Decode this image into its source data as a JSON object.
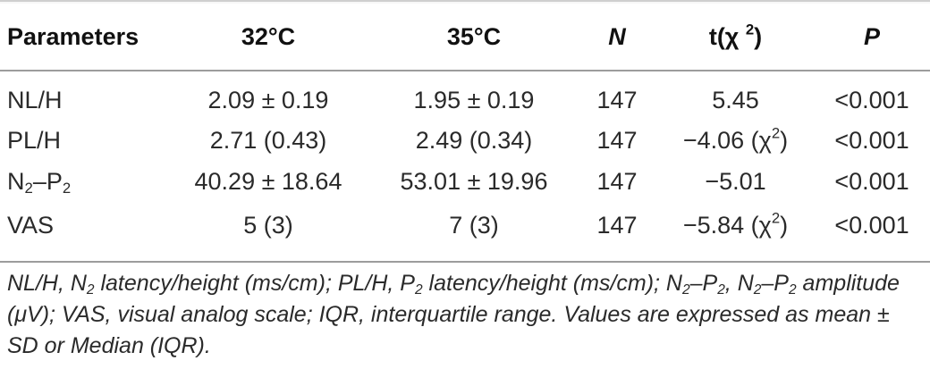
{
  "table": {
    "headers": {
      "parameters": "Parameters",
      "t32": "32°C",
      "t35": "35°C",
      "n": "N",
      "stat_prefix": "t(χ ",
      "stat_sup": "2",
      "stat_suffix": ")",
      "p": "P"
    },
    "rows": [
      {
        "param": "NL/H",
        "t32": "2.09 ± 0.19",
        "t35": "1.95 ± 0.19",
        "n": "147",
        "stat": "5.45",
        "p": "<0.001"
      },
      {
        "param": "PL/H",
        "t32": "2.71 (0.43)",
        "t35": "2.49 (0.34)",
        "n": "147",
        "stat": "−4.06 (χ",
        "stat_sup": "2",
        "stat_suffix": ")",
        "p": "<0.001"
      },
      {
        "param_a": "N",
        "param_a_sub": "2",
        "param_dash": "–P",
        "param_b_sub": "2",
        "t32": "40.29 ± 18.64",
        "t35": "53.01 ± 19.96",
        "n": "147",
        "stat": "−5.01",
        "p": "<0.001"
      },
      {
        "param": "VAS",
        "t32": "5 (3)",
        "t35": "7 (3)",
        "n": "147",
        "stat": "−5.84 (χ",
        "stat_sup": "2",
        "stat_suffix": ")",
        "p": "<0.001"
      }
    ]
  },
  "footnote": {
    "p1": "NL/H, N",
    "s1": "2",
    "p2": " latency/height (ms/cm); PL/H, P",
    "s2": "2",
    "p3": " latency/height (ms/cm); N",
    "s3": "2",
    "p4": "–P",
    "s4": "2",
    "p5": ", N",
    "s5": "2",
    "p6": "–P",
    "s6": "2",
    "p7": " amplitude (μV); VAS, visual analog scale; IQR, interquartile range. Values are expressed as mean ± SD or Median (IQR)."
  }
}
